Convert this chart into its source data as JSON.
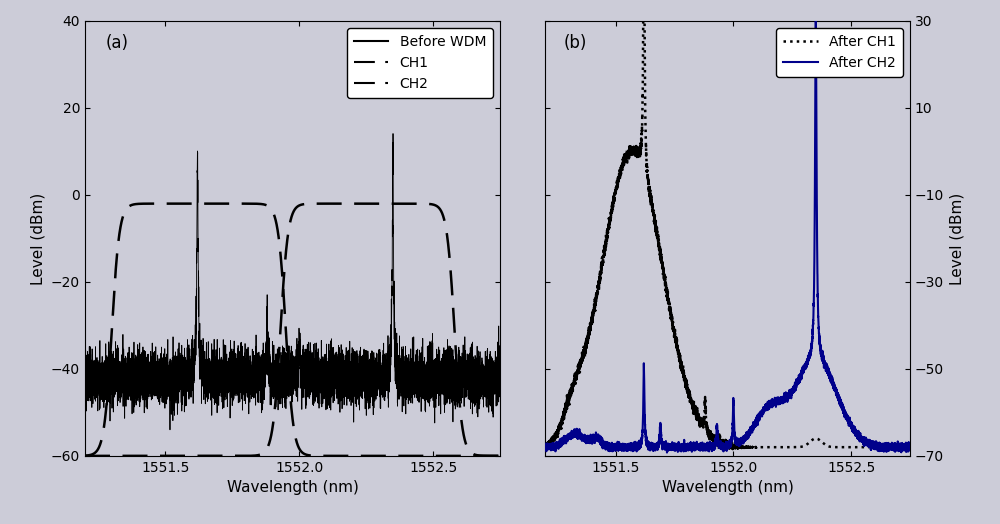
{
  "fig_width": 10.0,
  "fig_height": 5.24,
  "bg_color": "#ccccd8",
  "panel_a": {
    "label": "(a)",
    "xlim": [
      1551.2,
      1552.75
    ],
    "ylim": [
      -60,
      40
    ],
    "yticks": [
      -60,
      -40,
      -20,
      0,
      20,
      40
    ],
    "xticks": [
      1551.5,
      1552.0,
      1552.5
    ],
    "xlabel": "Wavelength (nm)",
    "ylabel": "Level (dBm)",
    "legend_labels": [
      "Before WDM",
      "CH1",
      "CH2"
    ]
  },
  "panel_b": {
    "label": "(b)",
    "xlim": [
      1551.2,
      1552.75
    ],
    "ylim": [
      -70,
      30
    ],
    "yticks": [
      -70,
      -50,
      -30,
      -10,
      10,
      30
    ],
    "xticks": [
      1551.5,
      1552.0,
      1552.5
    ],
    "xlabel": "Wavelength (nm)",
    "ylabel": "Level (dBm)",
    "legend_labels": [
      "After CH1",
      "After CH2"
    ]
  },
  "peak1_wl": 1551.62,
  "peak2_wl": 1551.88,
  "peak3_wl": 1552.0,
  "peak4_wl": 1552.35,
  "noise_floor_a": -42,
  "noise_floor_b": -68,
  "darkblue": "#00008B"
}
